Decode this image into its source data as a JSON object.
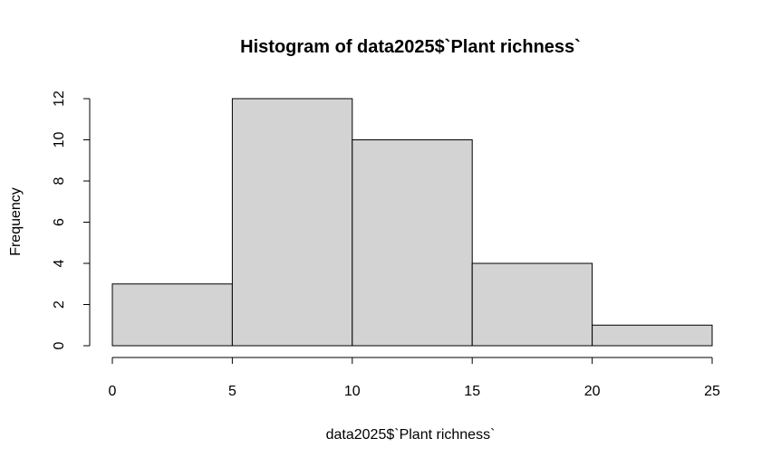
{
  "chart_data": {
    "type": "bar",
    "title": "Histogram of data2025$`Plant richness`",
    "xlabel": "data2025$`Plant richness`",
    "ylabel": "Frequency",
    "bins": [
      {
        "start": 0,
        "end": 5,
        "count": 3
      },
      {
        "start": 5,
        "end": 10,
        "count": 12
      },
      {
        "start": 10,
        "end": 15,
        "count": 10
      },
      {
        "start": 15,
        "end": 20,
        "count": 4
      },
      {
        "start": 20,
        "end": 25,
        "count": 1
      }
    ],
    "xlim": [
      0,
      25
    ],
    "ylim": [
      0,
      12
    ],
    "x_ticks": [
      "0",
      "5",
      "10",
      "15",
      "20",
      "25"
    ],
    "y_ticks": [
      "0",
      "2",
      "4",
      "6",
      "8",
      "10",
      "12"
    ],
    "grid": false,
    "bar_color": "#d3d3d3"
  }
}
